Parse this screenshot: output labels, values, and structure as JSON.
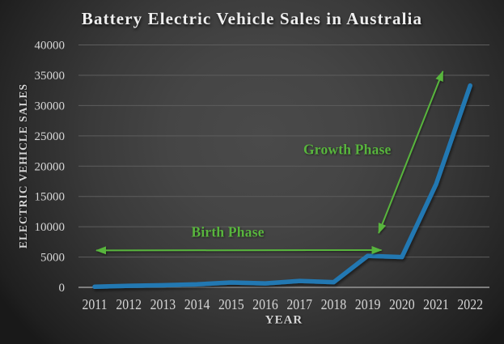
{
  "chart_data": {
    "type": "line",
    "title": "Battery Electric Vehicle Sales in Australia",
    "xlabel": "YEAR",
    "ylabel": "ELECTRIC VEHICLE SALES",
    "categories": [
      "2011",
      "2012",
      "2013",
      "2014",
      "2015",
      "2016",
      "2017",
      "2018",
      "2019",
      "2020",
      "2021",
      "2022"
    ],
    "series": [
      {
        "name": "Battery electric vehicle sales",
        "values": [
          100,
          250,
          350,
          500,
          800,
          650,
          1050,
          850,
          5200,
          5000,
          17000,
          33300
        ]
      }
    ],
    "ylim": [
      0,
      40000
    ],
    "ytick_step": 5000,
    "grid": true,
    "legend": false,
    "line_color": "#2478b2",
    "annotation_color": "#58b53d",
    "axis_text_color": "#d6d6d6",
    "title_color": "#efefef",
    "annotations": [
      {
        "label": "Birth Phase",
        "type": "double-arrow",
        "x1": 2011.05,
        "v1": 6100,
        "x2": 2019.4,
        "v2": 6150,
        "label_x": 2014.9,
        "label_v": 9100
      },
      {
        "label": "Growth Phase",
        "type": "double-arrow",
        "x1": 2019.32,
        "v1": 8950,
        "x2": 2021.2,
        "v2": 35650,
        "label_x": 2018.4,
        "label_v": 22700
      }
    ]
  }
}
